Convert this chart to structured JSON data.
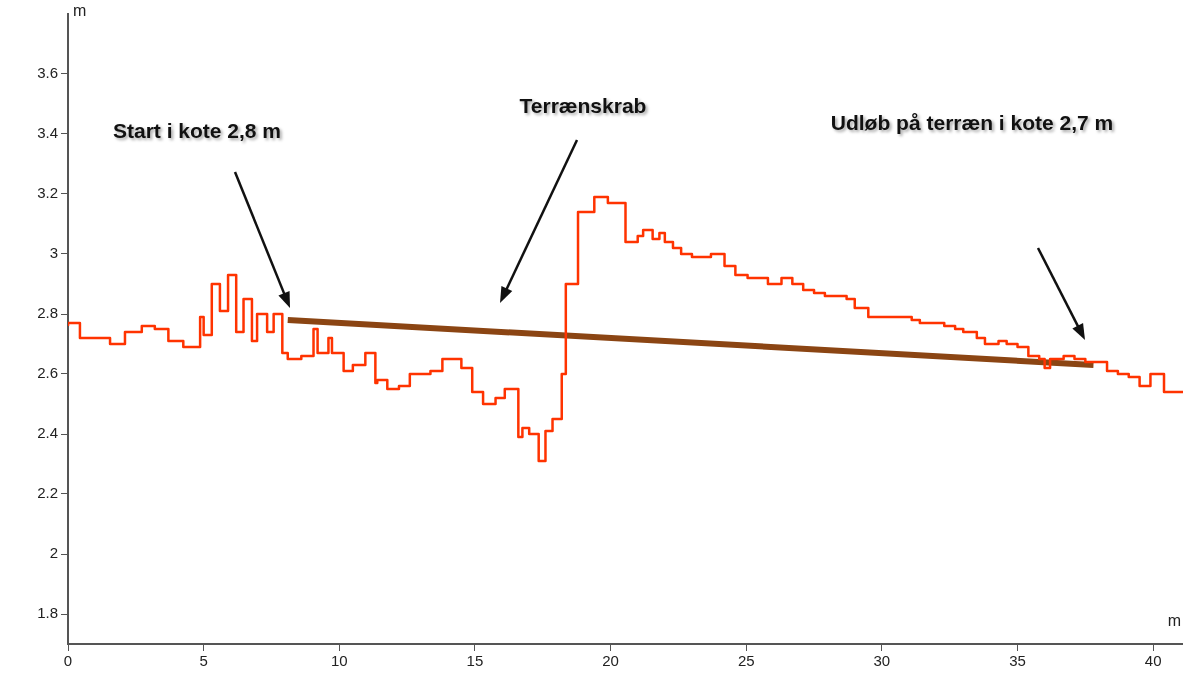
{
  "chart_data": {
    "type": "line",
    "xlabel": "m",
    "ylabel": "m",
    "xlim": [
      0,
      41.1
    ],
    "ylim": [
      1.7,
      3.8
    ],
    "xticks": [
      0,
      5,
      10,
      15,
      20,
      25,
      30,
      35,
      40
    ],
    "yticks": [
      1.8,
      2,
      2.2,
      2.4,
      2.6,
      2.8,
      3,
      3.2,
      3.4,
      3.6
    ],
    "grid": false,
    "legend": false,
    "marker": "none",
    "annotations": [
      "Start i kote 2,8 m",
      "Terrænskrab",
      "Udløb på terræn i kote 2,7 m"
    ],
    "series": [
      {
        "type": "step",
        "color": "#ff3300",
        "x": [
          0,
          0.44,
          1.55,
          2.1,
          2.72,
          3.2,
          3.7,
          4.25,
          4.87,
          5.0,
          5.3,
          5.6,
          5.9,
          6.2,
          6.47,
          6.78,
          6.97,
          7.34,
          7.58,
          7.9,
          8.1,
          8.6,
          9.05,
          9.2,
          9.6,
          9.73,
          10.16,
          10.5,
          10.96,
          11.33,
          11.4,
          11.77,
          12.2,
          12.6,
          13.36,
          13.8,
          14.5,
          14.9,
          15.3,
          15.76,
          16.1,
          16.6,
          16.75,
          17.0,
          17.35,
          17.6,
          17.86,
          18.2,
          18.35,
          18.8,
          19.4,
          19.9,
          20.55,
          21.0,
          21.2,
          21.55,
          21.8,
          22.0,
          22.3,
          22.6,
          23.0,
          23.7,
          24.2,
          24.6,
          25.05,
          25.8,
          26.3,
          26.7,
          27.1,
          27.5,
          27.9,
          28.7,
          29.0,
          29.5,
          31.1,
          31.4,
          32.3,
          32.7,
          33.0,
          33.5,
          33.8,
          34.3,
          34.6,
          35.0,
          35.4,
          35.8,
          36.0,
          36.2,
          36.7,
          37.1,
          37.5,
          38.3,
          38.7,
          39.1,
          39.5,
          39.9,
          40.4,
          41.0,
          41.1
        ],
        "values": [
          2.76,
          2.77,
          2.72,
          2.7,
          2.74,
          2.76,
          2.75,
          2.71,
          2.69,
          2.79,
          2.73,
          2.9,
          2.81,
          2.93,
          2.74,
          2.85,
          2.71,
          2.8,
          2.74,
          2.8,
          2.67,
          2.65,
          2.66,
          2.75,
          2.67,
          2.72,
          2.67,
          2.61,
          2.63,
          2.67,
          2.57,
          2.58,
          2.55,
          2.56,
          2.6,
          2.61,
          2.65,
          2.62,
          2.54,
          2.5,
          2.52,
          2.55,
          2.39,
          2.42,
          2.4,
          2.31,
          2.41,
          2.45,
          2.6,
          2.9,
          3.14,
          3.19,
          3.17,
          3.04,
          3.06,
          3.08,
          3.05,
          3.07,
          3.04,
          3.02,
          3.0,
          2.99,
          3.0,
          2.96,
          2.93,
          2.92,
          2.9,
          2.92,
          2.9,
          2.88,
          2.87,
          2.86,
          2.85,
          2.82,
          2.79,
          2.78,
          2.77,
          2.76,
          2.75,
          2.74,
          2.72,
          2.7,
          2.71,
          2.7,
          2.69,
          2.66,
          2.65,
          2.62,
          2.65,
          2.66,
          2.65,
          2.64,
          2.61,
          2.6,
          2.59,
          2.56,
          2.6,
          2.54,
          2.54
        ]
      },
      {
        "type": "line",
        "color": "#8b4513",
        "x": [
          8.1,
          37.8
        ],
        "values": [
          2.78,
          2.63
        ]
      }
    ]
  }
}
